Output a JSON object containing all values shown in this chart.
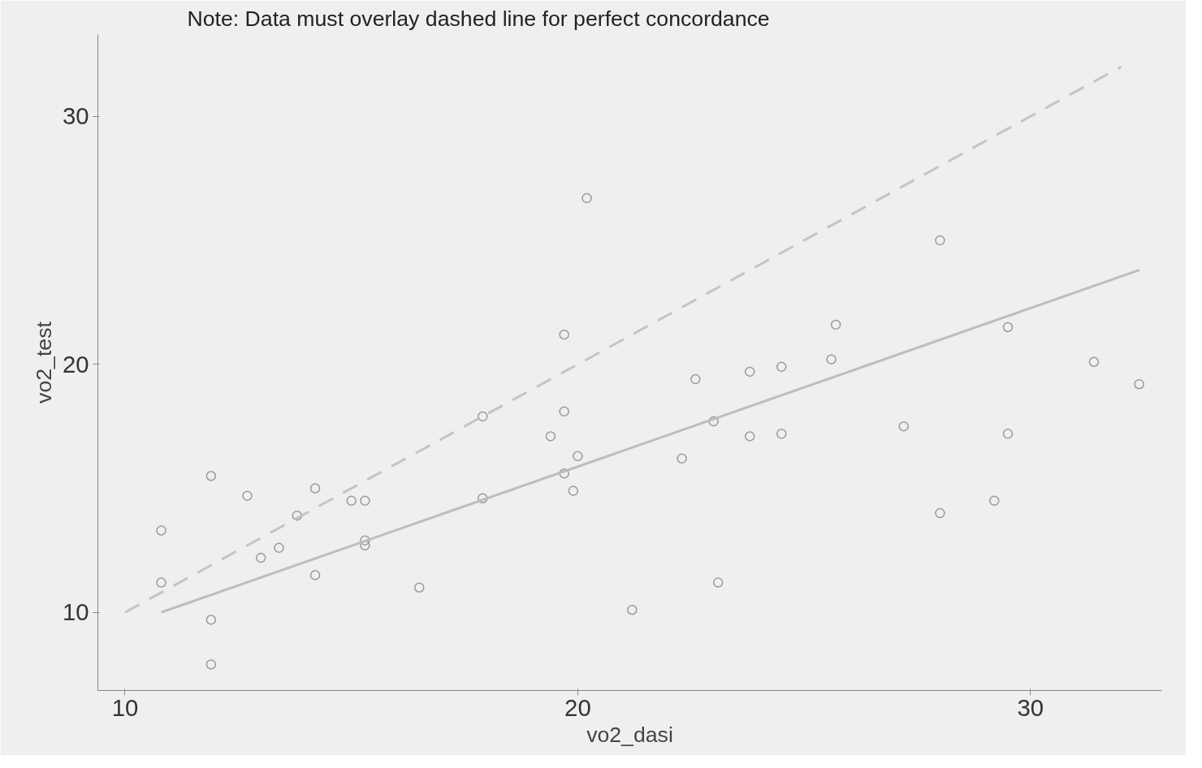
{
  "chart_data": {
    "type": "scatter",
    "title": "Note: Data must overlay dashed line for perfect concordance",
    "xlabel": "vo2_dasi",
    "ylabel": "vo2_test",
    "xlim": [
      9.4,
      32.9
    ],
    "ylim": [
      6.85,
      33.3
    ],
    "xticks": [
      10,
      20,
      30
    ],
    "yticks": [
      10,
      20,
      30
    ],
    "grid": false,
    "series": [
      {
        "marker": "circle",
        "color": "#9a9a9a",
        "x": [
          10.8,
          10.8,
          11.9,
          11.9,
          11.9,
          12.7,
          13.0,
          13.4,
          13.8,
          14.2,
          14.2,
          15.0,
          15.3,
          15.3,
          15.3,
          16.5,
          17.9,
          17.9,
          19.4,
          19.7,
          19.7,
          19.7,
          19.9,
          20.0,
          20.2,
          21.2,
          22.3,
          22.6,
          23.0,
          23.1,
          23.8,
          23.8,
          24.5,
          24.5,
          25.6,
          25.7,
          27.2,
          28.0,
          28.0,
          29.2,
          29.5,
          29.5,
          31.4,
          32.4
        ],
        "values": [
          13.3,
          11.2,
          15.5,
          9.7,
          7.9,
          14.7,
          12.2,
          12.6,
          13.9,
          15.0,
          11.5,
          14.5,
          14.5,
          12.9,
          12.7,
          11.0,
          14.6,
          17.9,
          17.1,
          21.2,
          18.1,
          15.6,
          14.9,
          16.3,
          26.7,
          10.1,
          16.2,
          19.4,
          17.7,
          11.2,
          19.7,
          17.1,
          19.9,
          17.2,
          20.2,
          21.6,
          17.5,
          25.0,
          14.0,
          14.5,
          21.5,
          17.2,
          20.1,
          19.2
        ]
      },
      {
        "type": "line",
        "line_style": "solid",
        "color": "#bdbdbd",
        "x": [
          10.8,
          32.4
        ],
        "values": [
          10.0,
          23.8
        ]
      },
      {
        "type": "line",
        "line_style": "dashed",
        "color": "#c4c4c4",
        "x": [
          10,
          32
        ],
        "values": [
          10,
          32
        ]
      }
    ]
  }
}
